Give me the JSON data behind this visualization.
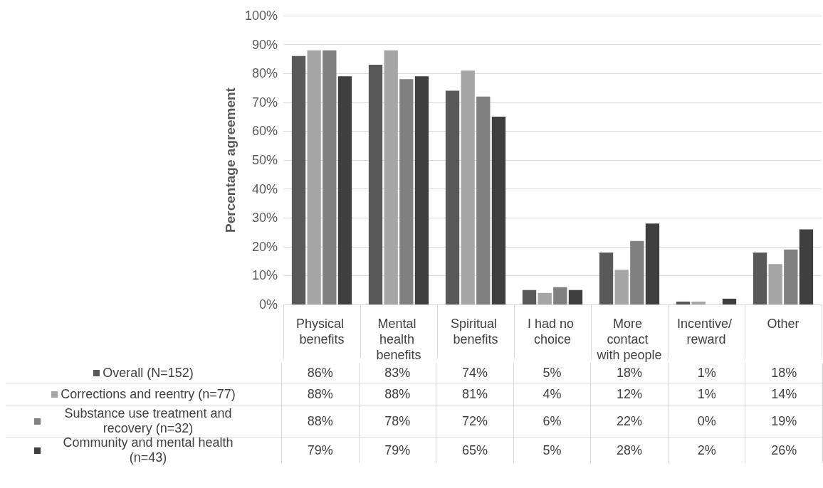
{
  "chart_data": {
    "type": "bar",
    "ylabel": "Percentage agreement",
    "categories": [
      "Physical benefits",
      "Mental health benefits",
      "Spiritual benefits",
      "I had no choice",
      "More contact with people",
      "Incentive/ reward",
      "Other"
    ],
    "series": [
      {
        "name": "Overall (N=152)",
        "color": "#595959",
        "values": [
          86,
          83,
          74,
          5,
          18,
          1,
          18
        ],
        "value_labels": [
          "86%",
          "83%",
          "74%",
          "5%",
          "18%",
          "1%",
          "18%"
        ]
      },
      {
        "name": "Corrections and reentry (n=77)",
        "color": "#a6a6a6",
        "values": [
          88,
          88,
          81,
          4,
          12,
          1,
          14
        ],
        "value_labels": [
          "88%",
          "88%",
          "81%",
          "4%",
          "12%",
          "1%",
          "14%"
        ]
      },
      {
        "name": "Substance use treatment and recovery (n=32)",
        "color": "#808080",
        "values": [
          88,
          78,
          72,
          6,
          22,
          0,
          19
        ],
        "value_labels": [
          "88%",
          "78%",
          "72%",
          "6%",
          "22%",
          "0%",
          "19%"
        ]
      },
      {
        "name": "Community and mental health (n=43)",
        "color": "#3f3f3f",
        "values": [
          79,
          79,
          65,
          5,
          28,
          2,
          26
        ],
        "value_labels": [
          "79%",
          "79%",
          "65%",
          "5%",
          "28%",
          "2%",
          "26%"
        ]
      }
    ],
    "ylim": [
      0,
      100
    ],
    "yticks": [
      {
        "value": 0,
        "label": "0%"
      },
      {
        "value": 10,
        "label": "10%"
      },
      {
        "value": 20,
        "label": "20%"
      },
      {
        "value": 30,
        "label": "30%"
      },
      {
        "value": 40,
        "label": "40%"
      },
      {
        "value": 50,
        "label": "50%"
      },
      {
        "value": 60,
        "label": "60%"
      },
      {
        "value": 70,
        "label": "70%"
      },
      {
        "value": 80,
        "label": "80%"
      },
      {
        "value": 90,
        "label": "90%"
      },
      {
        "value": 100,
        "label": "100%"
      }
    ],
    "grid": "y",
    "legend": "bottom"
  }
}
